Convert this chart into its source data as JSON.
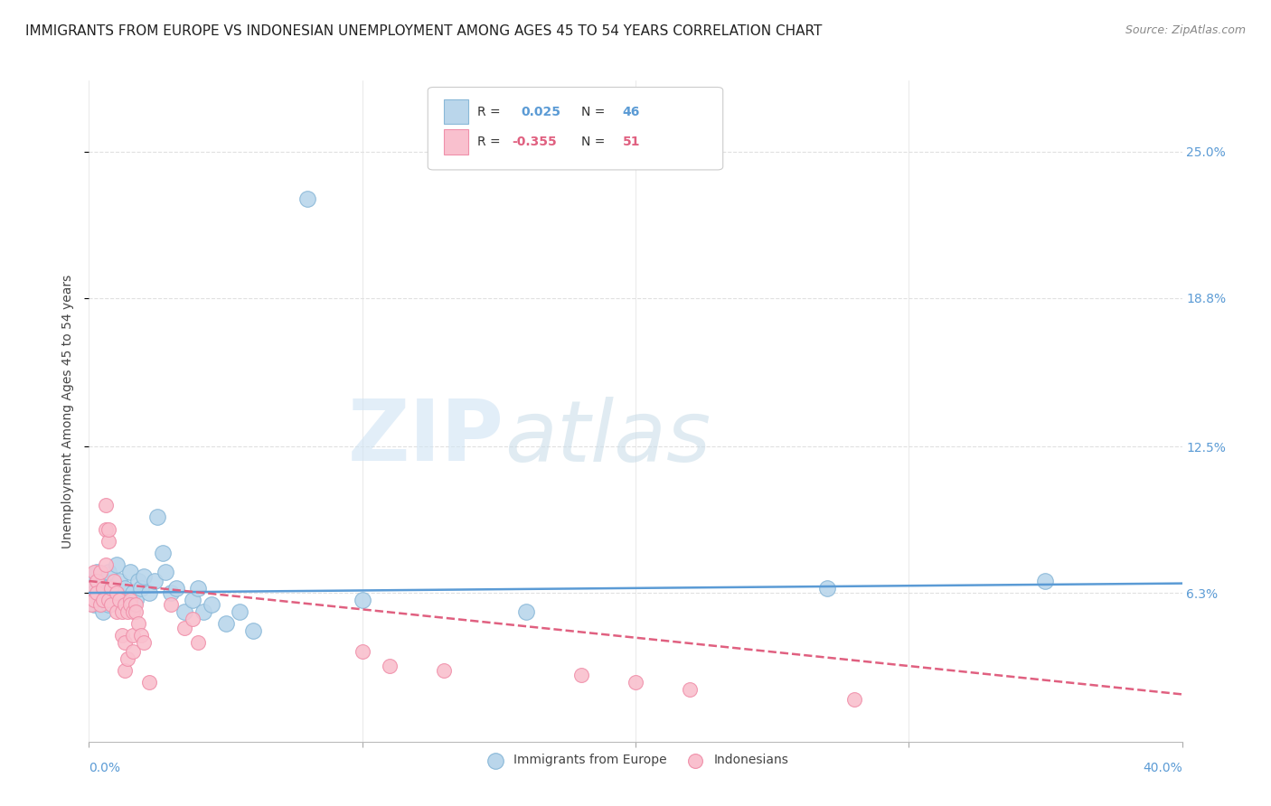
{
  "title": "IMMIGRANTS FROM EUROPE VS INDONESIAN UNEMPLOYMENT AMONG AGES 45 TO 54 YEARS CORRELATION CHART",
  "source": "Source: ZipAtlas.com",
  "ylabel": "Unemployment Among Ages 45 to 54 years",
  "ytick_labels": [
    "25.0%",
    "18.8%",
    "12.5%",
    "6.3%"
  ],
  "ytick_values": [
    0.25,
    0.188,
    0.125,
    0.063
  ],
  "xlim": [
    0.0,
    0.4
  ],
  "ylim": [
    0.0,
    0.28
  ],
  "watermark_zip": "ZIP",
  "watermark_atlas": "atlas",
  "legend_label_blue": "Immigrants from Europe",
  "legend_label_pink": "Indonesians",
  "blue_color": "#bad6eb",
  "pink_color": "#f9c0ce",
  "blue_edge": "#89b8d8",
  "pink_edge": "#f090aa",
  "blue_line_color": "#5b9bd5",
  "pink_line_color": "#e06080",
  "blue_scatter": [
    [
      0.001,
      0.068
    ],
    [
      0.002,
      0.063
    ],
    [
      0.002,
      0.058
    ],
    [
      0.003,
      0.072
    ],
    [
      0.003,
      0.06
    ],
    [
      0.004,
      0.065
    ],
    [
      0.004,
      0.058
    ],
    [
      0.005,
      0.068
    ],
    [
      0.005,
      0.055
    ],
    [
      0.006,
      0.065
    ],
    [
      0.006,
      0.06
    ],
    [
      0.007,
      0.072
    ],
    [
      0.007,
      0.058
    ],
    [
      0.008,
      0.065
    ],
    [
      0.009,
      0.06
    ],
    [
      0.01,
      0.075
    ],
    [
      0.01,
      0.063
    ],
    [
      0.011,
      0.068
    ],
    [
      0.012,
      0.06
    ],
    [
      0.013,
      0.065
    ],
    [
      0.014,
      0.058
    ],
    [
      0.015,
      0.072
    ],
    [
      0.016,
      0.063
    ],
    [
      0.017,
      0.06
    ],
    [
      0.018,
      0.068
    ],
    [
      0.019,
      0.065
    ],
    [
      0.02,
      0.07
    ],
    [
      0.022,
      0.063
    ],
    [
      0.024,
      0.068
    ],
    [
      0.025,
      0.095
    ],
    [
      0.027,
      0.08
    ],
    [
      0.028,
      0.072
    ],
    [
      0.03,
      0.063
    ],
    [
      0.032,
      0.065
    ],
    [
      0.035,
      0.055
    ],
    [
      0.038,
      0.06
    ],
    [
      0.04,
      0.065
    ],
    [
      0.042,
      0.055
    ],
    [
      0.045,
      0.058
    ],
    [
      0.05,
      0.05
    ],
    [
      0.055,
      0.055
    ],
    [
      0.06,
      0.047
    ],
    [
      0.1,
      0.06
    ],
    [
      0.16,
      0.055
    ],
    [
      0.27,
      0.065
    ],
    [
      0.35,
      0.068
    ],
    [
      0.08,
      0.23
    ]
  ],
  "pink_scatter": [
    [
      0.001,
      0.065
    ],
    [
      0.001,
      0.058
    ],
    [
      0.002,
      0.072
    ],
    [
      0.002,
      0.06
    ],
    [
      0.003,
      0.068
    ],
    [
      0.003,
      0.063
    ],
    [
      0.004,
      0.058
    ],
    [
      0.004,
      0.072
    ],
    [
      0.005,
      0.065
    ],
    [
      0.005,
      0.06
    ],
    [
      0.006,
      0.075
    ],
    [
      0.006,
      0.09
    ],
    [
      0.006,
      0.1
    ],
    [
      0.007,
      0.085
    ],
    [
      0.007,
      0.09
    ],
    [
      0.007,
      0.06
    ],
    [
      0.008,
      0.065
    ],
    [
      0.008,
      0.058
    ],
    [
      0.009,
      0.068
    ],
    [
      0.01,
      0.063
    ],
    [
      0.01,
      0.055
    ],
    [
      0.011,
      0.06
    ],
    [
      0.012,
      0.055
    ],
    [
      0.012,
      0.045
    ],
    [
      0.013,
      0.058
    ],
    [
      0.013,
      0.042
    ],
    [
      0.013,
      0.03
    ],
    [
      0.014,
      0.055
    ],
    [
      0.014,
      0.035
    ],
    [
      0.015,
      0.06
    ],
    [
      0.015,
      0.058
    ],
    [
      0.016,
      0.055
    ],
    [
      0.016,
      0.045
    ],
    [
      0.016,
      0.038
    ],
    [
      0.017,
      0.058
    ],
    [
      0.017,
      0.055
    ],
    [
      0.018,
      0.05
    ],
    [
      0.019,
      0.045
    ],
    [
      0.02,
      0.042
    ],
    [
      0.022,
      0.025
    ],
    [
      0.03,
      0.058
    ],
    [
      0.035,
      0.048
    ],
    [
      0.038,
      0.052
    ],
    [
      0.04,
      0.042
    ],
    [
      0.1,
      0.038
    ],
    [
      0.11,
      0.032
    ],
    [
      0.13,
      0.03
    ],
    [
      0.18,
      0.028
    ],
    [
      0.2,
      0.025
    ],
    [
      0.22,
      0.022
    ],
    [
      0.28,
      0.018
    ]
  ],
  "blue_trend_x": [
    0.0,
    0.4
  ],
  "blue_trend_y": [
    0.063,
    0.067
  ],
  "pink_trend_x": [
    0.0,
    0.4
  ],
  "pink_trend_y": [
    0.068,
    0.02
  ],
  "xtick_positions": [
    0.0,
    0.1,
    0.2,
    0.3,
    0.4
  ],
  "grid_color": "#e0e0e0",
  "background_color": "#ffffff",
  "title_fontsize": 11,
  "label_fontsize": 10,
  "tick_fontsize": 10,
  "source_fontsize": 9
}
